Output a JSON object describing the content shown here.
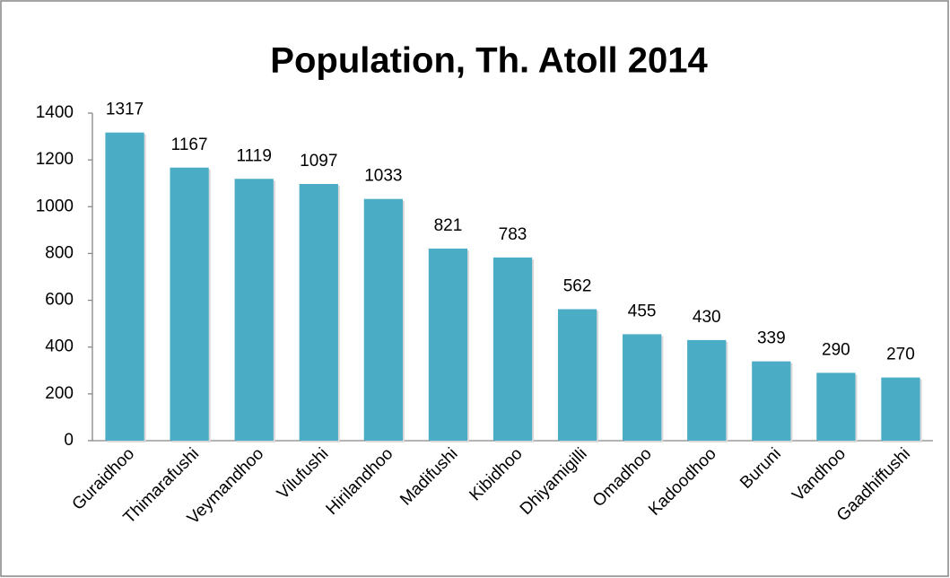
{
  "chart_data": {
    "type": "bar",
    "title": "Population, Th. Atoll 2014",
    "categories": [
      "Guraidhoo",
      "Thimarafushi",
      "Veymandhoo",
      "Vilufushi",
      "Hirilandhoo",
      "Madifushi",
      "Kibidhoo",
      "Dhiyamigilli",
      "Omadhoo",
      "Kadoodhoo",
      "Buruni",
      "Vandhoo",
      "Gaadhiffushi"
    ],
    "values": [
      1317,
      1167,
      1119,
      1097,
      1033,
      821,
      783,
      562,
      455,
      430,
      339,
      290,
      270
    ],
    "color": "#4bacc6",
    "ylim": [
      0,
      1400
    ],
    "yticks": [
      0,
      200,
      400,
      600,
      800,
      1000,
      1200,
      1400
    ],
    "grid": false
  }
}
